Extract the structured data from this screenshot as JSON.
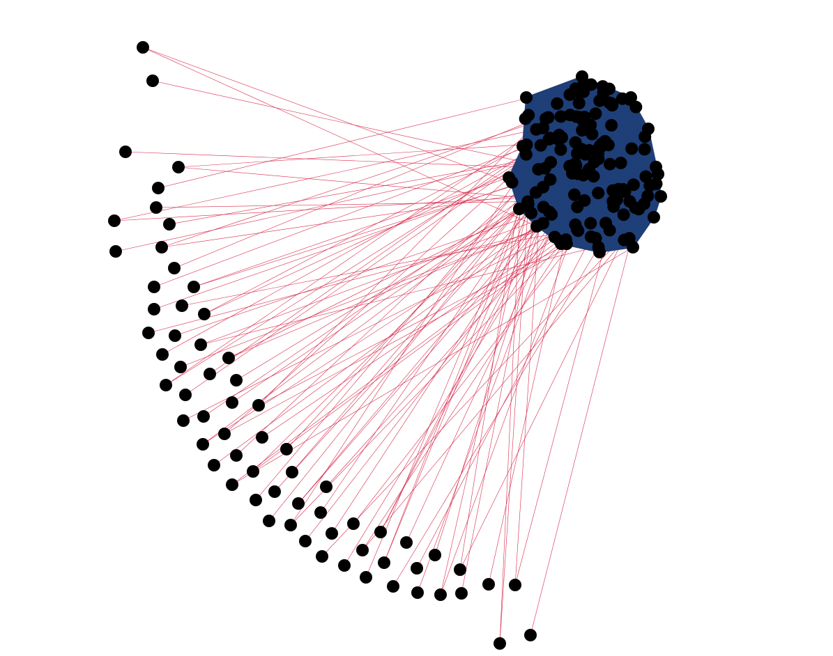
{
  "diagram": {
    "type": "network-graph",
    "colors": {
      "background": "#ffffff",
      "node": "#000000",
      "cluster_fill": "#1f3f78",
      "cluster_edge": "#1f3f78",
      "peripheral_edge": "#d6284a"
    },
    "clusters": [
      {
        "id": "core",
        "node_count": 140,
        "internally_dense": true
      }
    ],
    "peripheral_node_count": 74,
    "peripheral_edges_connect_to": "core",
    "labels_shown": false
  }
}
